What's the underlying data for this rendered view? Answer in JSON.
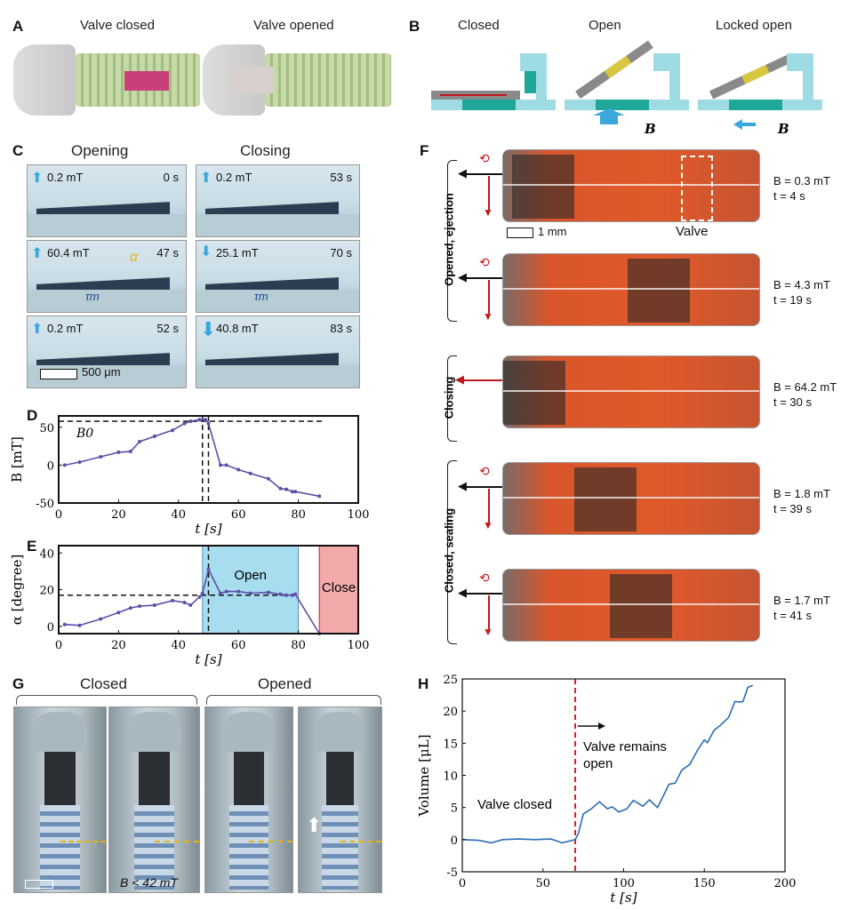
{
  "panels": {
    "A": {
      "label": "A",
      "left_title": "Valve closed",
      "right_title": "Valve opened"
    },
    "B": {
      "label": "B",
      "titles": [
        "Closed",
        "Open",
        "Locked open"
      ],
      "field_symbol": "B"
    },
    "C": {
      "label": "C",
      "col_titles": [
        "Opening",
        "Closing"
      ],
      "frames": [
        {
          "field": "0.2 mT",
          "time": "0 s",
          "dir": "up"
        },
        {
          "field": "0.2 mT",
          "time": "53 s",
          "dir": "up"
        },
        {
          "field": "60.4 mT",
          "time": "47 s",
          "dir": "up",
          "angle": "α",
          "torque": "τm"
        },
        {
          "field": "25.1 mT",
          "time": "70 s",
          "dir": "down",
          "torque": "τm"
        },
        {
          "field": "0.2 mT",
          "time": "52 s",
          "dir": "up"
        },
        {
          "field": "40.8 mT",
          "time": "83 s",
          "dir": "down"
        }
      ],
      "scale_bar": "500 μm"
    },
    "F": {
      "label": "F",
      "groups": [
        "Opened, ejection",
        "Closing",
        "Closed, sealing"
      ],
      "frames": [
        {
          "field": "B = 0.3 mT",
          "time": "t = 4 s"
        },
        {
          "field": "B = 4.3 mT",
          "time": "t = 19 s"
        },
        {
          "field": "B = 64.2 mT",
          "time": "t = 30 s"
        },
        {
          "field": "B = 1.8 mT",
          "time": "t = 39 s"
        },
        {
          "field": "B = 1.7 mT",
          "time": "t = 41 s"
        }
      ],
      "scale_bar": "1 mm",
      "valve_label": "Valve"
    },
    "G": {
      "label": "G",
      "groups": [
        "Closed",
        "Opened"
      ],
      "annotation": "B < 42 mT"
    }
  },
  "colors": {
    "line": "#5b4fa8",
    "marker": "#c0306a",
    "open_region": "#a8dcef",
    "close_region": "#f3a9a9",
    "h_line": "#2a6db5",
    "h_marker": "#d0212a",
    "arrow_blue": "#3aa7dd",
    "arrow_red": "#c0171c"
  },
  "chart_data": [
    {
      "id": "D",
      "label": "D",
      "type": "line",
      "xlabel": "t [s]",
      "ylabel": "B [mT]",
      "xlim": [
        0,
        100
      ],
      "ylim": [
        -50,
        65
      ],
      "xticks": [
        0,
        20,
        40,
        60,
        80,
        100
      ],
      "yticks": [
        -50,
        0,
        50
      ],
      "x": [
        2,
        7,
        14,
        20,
        24,
        27,
        32,
        38,
        42,
        44,
        47,
        49,
        50,
        54,
        56,
        60,
        64,
        70,
        74,
        76,
        78,
        79,
        87
      ],
      "y": [
        0,
        4,
        11,
        17,
        18,
        31,
        38,
        46,
        55,
        58,
        60,
        60,
        55,
        0,
        0,
        -6,
        -11,
        -18,
        -31,
        -32,
        -35,
        -35,
        -41
      ],
      "hline": {
        "y": 58,
        "label": "B0"
      },
      "vlines": [
        48,
        50
      ]
    },
    {
      "id": "E",
      "label": "E",
      "type": "line",
      "xlabel": "t [s]",
      "ylabel": "α [degree]",
      "xlim": [
        0,
        100
      ],
      "ylim": [
        -4,
        44
      ],
      "xticks": [
        0,
        20,
        40,
        60,
        80,
        100
      ],
      "yticks": [
        0,
        20,
        40
      ],
      "x": [
        2,
        7,
        14,
        20,
        24,
        27,
        32,
        38,
        42,
        44,
        47,
        48,
        50,
        54,
        56,
        60,
        64,
        70,
        74,
        76,
        78,
        79,
        87
      ],
      "y": [
        1,
        0.5,
        4,
        7.5,
        10,
        11,
        11.5,
        14,
        13,
        11.5,
        16,
        18,
        31,
        18,
        19,
        19,
        18,
        18.5,
        17.5,
        17,
        17,
        17.5,
        -4
      ],
      "hline": {
        "y": 17
      },
      "vlines": [
        50
      ],
      "regions": [
        {
          "from": 48,
          "to": 80,
          "label": "Open"
        },
        {
          "from": 87,
          "to": 100,
          "label": "Close"
        }
      ]
    },
    {
      "id": "H",
      "label": "H",
      "type": "line",
      "xlabel": "t [s]",
      "ylabel": "Volume [μL]",
      "xlim": [
        0,
        200
      ],
      "ylim": [
        -5,
        25
      ],
      "xticks": [
        0,
        50,
        100,
        150,
        200
      ],
      "yticks": [
        -5,
        0,
        5,
        10,
        15,
        20,
        25
      ],
      "x": [
        0,
        10,
        18,
        25,
        35,
        45,
        55,
        62,
        70,
        72,
        75,
        80,
        85,
        90,
        93,
        97,
        102,
        106,
        112,
        116,
        121,
        125,
        128,
        132,
        136,
        141,
        146,
        150,
        152,
        156,
        160,
        165,
        169,
        172,
        174,
        177,
        180
      ],
      "y": [
        0,
        -0.1,
        -0.5,
        0,
        0.1,
        0,
        0.1,
        -0.5,
        0,
        1,
        4,
        4.8,
        5.9,
        4.8,
        5.1,
        4.3,
        4.8,
        6.1,
        5.2,
        6.2,
        5,
        7,
        8.6,
        8.8,
        10.8,
        11.7,
        14,
        15.5,
        15.1,
        17,
        17.8,
        19,
        21.5,
        21.4,
        21.5,
        23.7,
        24
      ],
      "vlines": [
        70
      ],
      "annotations": [
        "Valve closed",
        "Valve remains open"
      ]
    }
  ]
}
